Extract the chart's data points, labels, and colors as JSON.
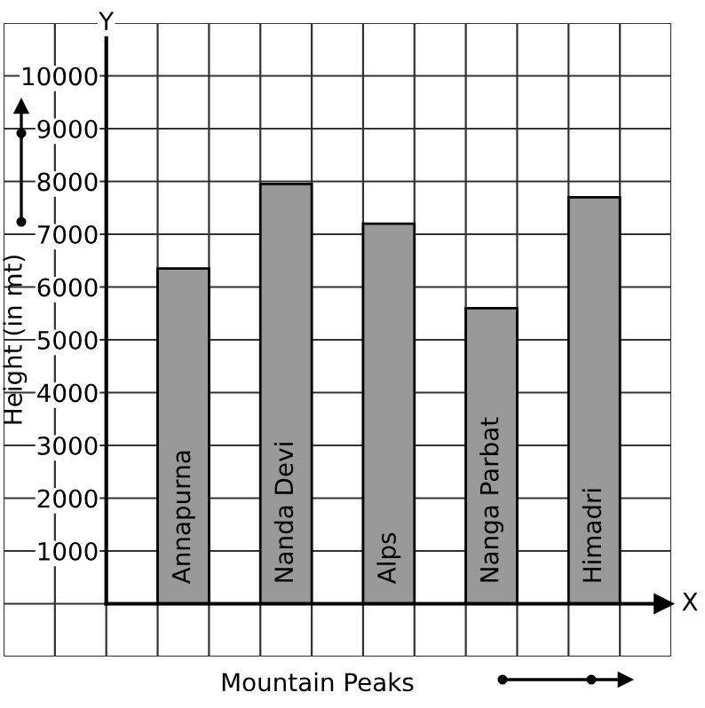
{
  "chart_data": {
    "type": "bar",
    "xlabel": "Mountain Peaks",
    "ylabel": "Height (in mt)",
    "categories": [
      "Annapurna",
      "Nanda Devi",
      "Alps",
      "Nanga Parbat",
      "Himadri"
    ],
    "values": [
      6350,
      7950,
      7200,
      5600,
      7700
    ],
    "color": "#999999",
    "ylim": [
      -1000,
      11000
    ],
    "yticks": [
      1000,
      2000,
      3000,
      4000,
      5000,
      6000,
      7000,
      8000,
      9000,
      10000
    ],
    "grid": true,
    "tick_labels": "y",
    "annotations": [
      "X",
      "Y"
    ]
  }
}
